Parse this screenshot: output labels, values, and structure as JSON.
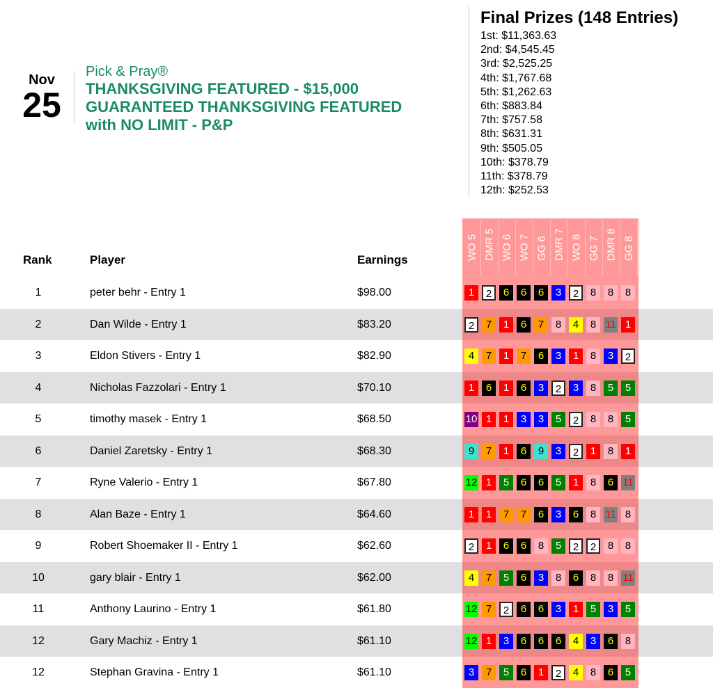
{
  "date": {
    "month": "Nov",
    "day": "25"
  },
  "event": {
    "brand": "Pick & Pray®",
    "title": [
      "THANKSGIVING FEATURED - $15,000",
      "GUARANTEED THANKSGIVING FEATURED",
      "with NO LIMIT - P&P"
    ]
  },
  "prizes": {
    "heading": "Final Prizes (148 Entries)",
    "list": [
      "1st: $11,363.63",
      "2nd: $4,545.45",
      "3rd: $2,525.25",
      "4th: $1,767.68",
      "5th: $1,262.63",
      "6th: $883.84",
      "7th: $757.58",
      "8th: $631.31",
      "9th: $505.05",
      "10th: $378.79",
      "11th: $378.79",
      "12th: $252.53"
    ]
  },
  "table": {
    "headers": {
      "rank": "Rank",
      "player": "Player",
      "earnings": "Earnings"
    },
    "races": [
      "WO 5",
      "DMR 5",
      "WO 6",
      "WO 7",
      "GG 6",
      "DMR 7",
      "WO 8",
      "GG 7",
      "DMR 8",
      "GG 8"
    ],
    "rows": [
      {
        "rank": "1",
        "player": "peter behr - Entry 1",
        "earnings": "$98.00",
        "picks": [
          "1",
          "2",
          "6",
          "6",
          "6",
          "3",
          "2",
          "8",
          "8",
          "8"
        ]
      },
      {
        "rank": "2",
        "player": "Dan Wilde - Entry 1",
        "earnings": "$83.20",
        "picks": [
          "2",
          "7",
          "1",
          "6",
          "7",
          "8",
          "4",
          "8",
          "11",
          "1"
        ]
      },
      {
        "rank": "3",
        "player": "Eldon Stivers - Entry 1",
        "earnings": "$82.90",
        "picks": [
          "4",
          "7",
          "1",
          "7",
          "6",
          "3",
          "1",
          "8",
          "3",
          "2"
        ]
      },
      {
        "rank": "4",
        "player": "Nicholas Fazzolari - Entry 1",
        "earnings": "$70.10",
        "picks": [
          "1",
          "6",
          "1",
          "6",
          "3",
          "2",
          "3",
          "8",
          "5",
          "5"
        ]
      },
      {
        "rank": "5",
        "player": "timothy masek - Entry 1",
        "earnings": "$68.50",
        "picks": [
          "10",
          "1",
          "1",
          "3",
          "3",
          "5",
          "2",
          "8",
          "8",
          "5"
        ]
      },
      {
        "rank": "6",
        "player": "Daniel Zaretsky - Entry 1",
        "earnings": "$68.30",
        "picks": [
          "9",
          "7",
          "1",
          "6",
          "9",
          "3",
          "2",
          "1",
          "8",
          "1"
        ]
      },
      {
        "rank": "7",
        "player": "Ryne Valerio - Entry 1",
        "earnings": "$67.80",
        "picks": [
          "12",
          "1",
          "5",
          "6",
          "6",
          "5",
          "1",
          "8",
          "6",
          "11"
        ]
      },
      {
        "rank": "8",
        "player": "Alan Baze - Entry 1",
        "earnings": "$64.60",
        "picks": [
          "1",
          "1",
          "7",
          "7",
          "6",
          "3",
          "6",
          "8",
          "11",
          "8"
        ]
      },
      {
        "rank": "9",
        "player": "Robert Shoemaker II - Entry 1",
        "earnings": "$62.60",
        "picks": [
          "2",
          "1",
          "6",
          "6",
          "8",
          "5",
          "2",
          "2",
          "8",
          "8"
        ]
      },
      {
        "rank": "10",
        "player": "gary blair - Entry 1",
        "earnings": "$62.00",
        "picks": [
          "4",
          "7",
          "5",
          "6",
          "3",
          "8",
          "6",
          "8",
          "8",
          "11"
        ]
      },
      {
        "rank": "11",
        "player": "Anthony Laurino - Entry 1",
        "earnings": "$61.80",
        "picks": [
          "12",
          "7",
          "2",
          "6",
          "6",
          "3",
          "1",
          "5",
          "3",
          "5"
        ]
      },
      {
        "rank": "12",
        "player": "Gary Machiz - Entry 1",
        "earnings": "$61.10",
        "picks": [
          "12",
          "1",
          "3",
          "6",
          "6",
          "6",
          "4",
          "3",
          "6",
          "8"
        ]
      },
      {
        "rank": "12",
        "player": "Stephan Gravina - Entry 1",
        "earnings": "$61.10",
        "picks": [
          "3",
          "7",
          "5",
          "6",
          "1",
          "2",
          "4",
          "8",
          "6",
          "5"
        ]
      }
    ]
  },
  "saddle_colors": {
    "1": [
      "#ff0000",
      "#ffffff"
    ],
    "2": [
      "#ffffff",
      "#000000"
    ],
    "3": [
      "#0000ff",
      "#ffffff"
    ],
    "4": [
      "#ffff00",
      "#000000"
    ],
    "5": [
      "#008000",
      "#ffffff"
    ],
    "6": [
      "#000000",
      "#ffff00"
    ],
    "7": [
      "#ff9900",
      "#000000"
    ],
    "8": [
      "#ffb6c1",
      "#000000"
    ],
    "9": [
      "#40e0d0",
      "#000000"
    ],
    "10": [
      "#800080",
      "#ffffff"
    ],
    "11": [
      "#808080",
      "#ff0000"
    ],
    "12": [
      "#00ff00",
      "#000000"
    ]
  }
}
